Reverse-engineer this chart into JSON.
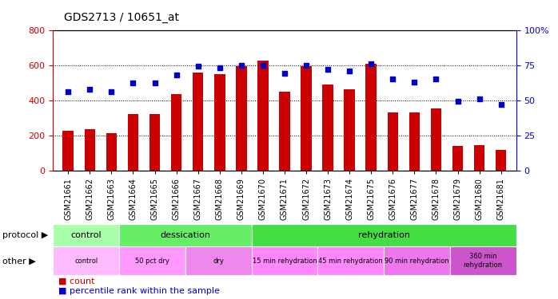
{
  "title": "GDS2713 / 10651_at",
  "samples": [
    "GSM21661",
    "GSM21662",
    "GSM21663",
    "GSM21664",
    "GSM21665",
    "GSM21666",
    "GSM21667",
    "GSM21668",
    "GSM21669",
    "GSM21670",
    "GSM21671",
    "GSM21672",
    "GSM21673",
    "GSM21674",
    "GSM21675",
    "GSM21676",
    "GSM21677",
    "GSM21678",
    "GSM21679",
    "GSM21680",
    "GSM21681"
  ],
  "bar_values": [
    225,
    235,
    210,
    320,
    320,
    435,
    555,
    550,
    595,
    625,
    450,
    595,
    490,
    460,
    605,
    330,
    330,
    355,
    140,
    145,
    115
  ],
  "dot_values": [
    56,
    58,
    56,
    62,
    62,
    68,
    74,
    73,
    75,
    75,
    69,
    75,
    72,
    71,
    76,
    65,
    63,
    65,
    49,
    51,
    47
  ],
  "bar_color": "#cc0000",
  "dot_color": "#0000cc",
  "ylim_left": [
    0,
    800
  ],
  "ylim_right": [
    0,
    100
  ],
  "yticks_left": [
    0,
    200,
    400,
    600,
    800
  ],
  "yticks_right": [
    0,
    25,
    50,
    75,
    100
  ],
  "protocol_groups": [
    {
      "label": "control",
      "start": 0,
      "end": 3,
      "color": "#aaffaa"
    },
    {
      "label": "dessication",
      "start": 3,
      "end": 9,
      "color": "#66ee66"
    },
    {
      "label": "rehydration",
      "start": 9,
      "end": 21,
      "color": "#44dd44"
    }
  ],
  "other_groups": [
    {
      "label": "control",
      "start": 0,
      "end": 3,
      "color": "#ffbbff"
    },
    {
      "label": "50 pct dry",
      "start": 3,
      "end": 6,
      "color": "#ff99ff"
    },
    {
      "label": "dry",
      "start": 6,
      "end": 9,
      "color": "#ee88ee"
    },
    {
      "label": "15 min rehydration",
      "start": 9,
      "end": 12,
      "color": "#ff88ff"
    },
    {
      "label": "45 min rehydration",
      "start": 12,
      "end": 15,
      "color": "#ff88ff"
    },
    {
      "label": "90 min rehydration",
      "start": 15,
      "end": 18,
      "color": "#ee77ee"
    },
    {
      "label": "360 min\nrehydration",
      "start": 18,
      "end": 21,
      "color": "#cc55cc"
    }
  ],
  "bg_color": "#ffffff",
  "tick_label_color": "#cc0000",
  "right_tick_color": "#0000cc",
  "bar_width": 0.5
}
